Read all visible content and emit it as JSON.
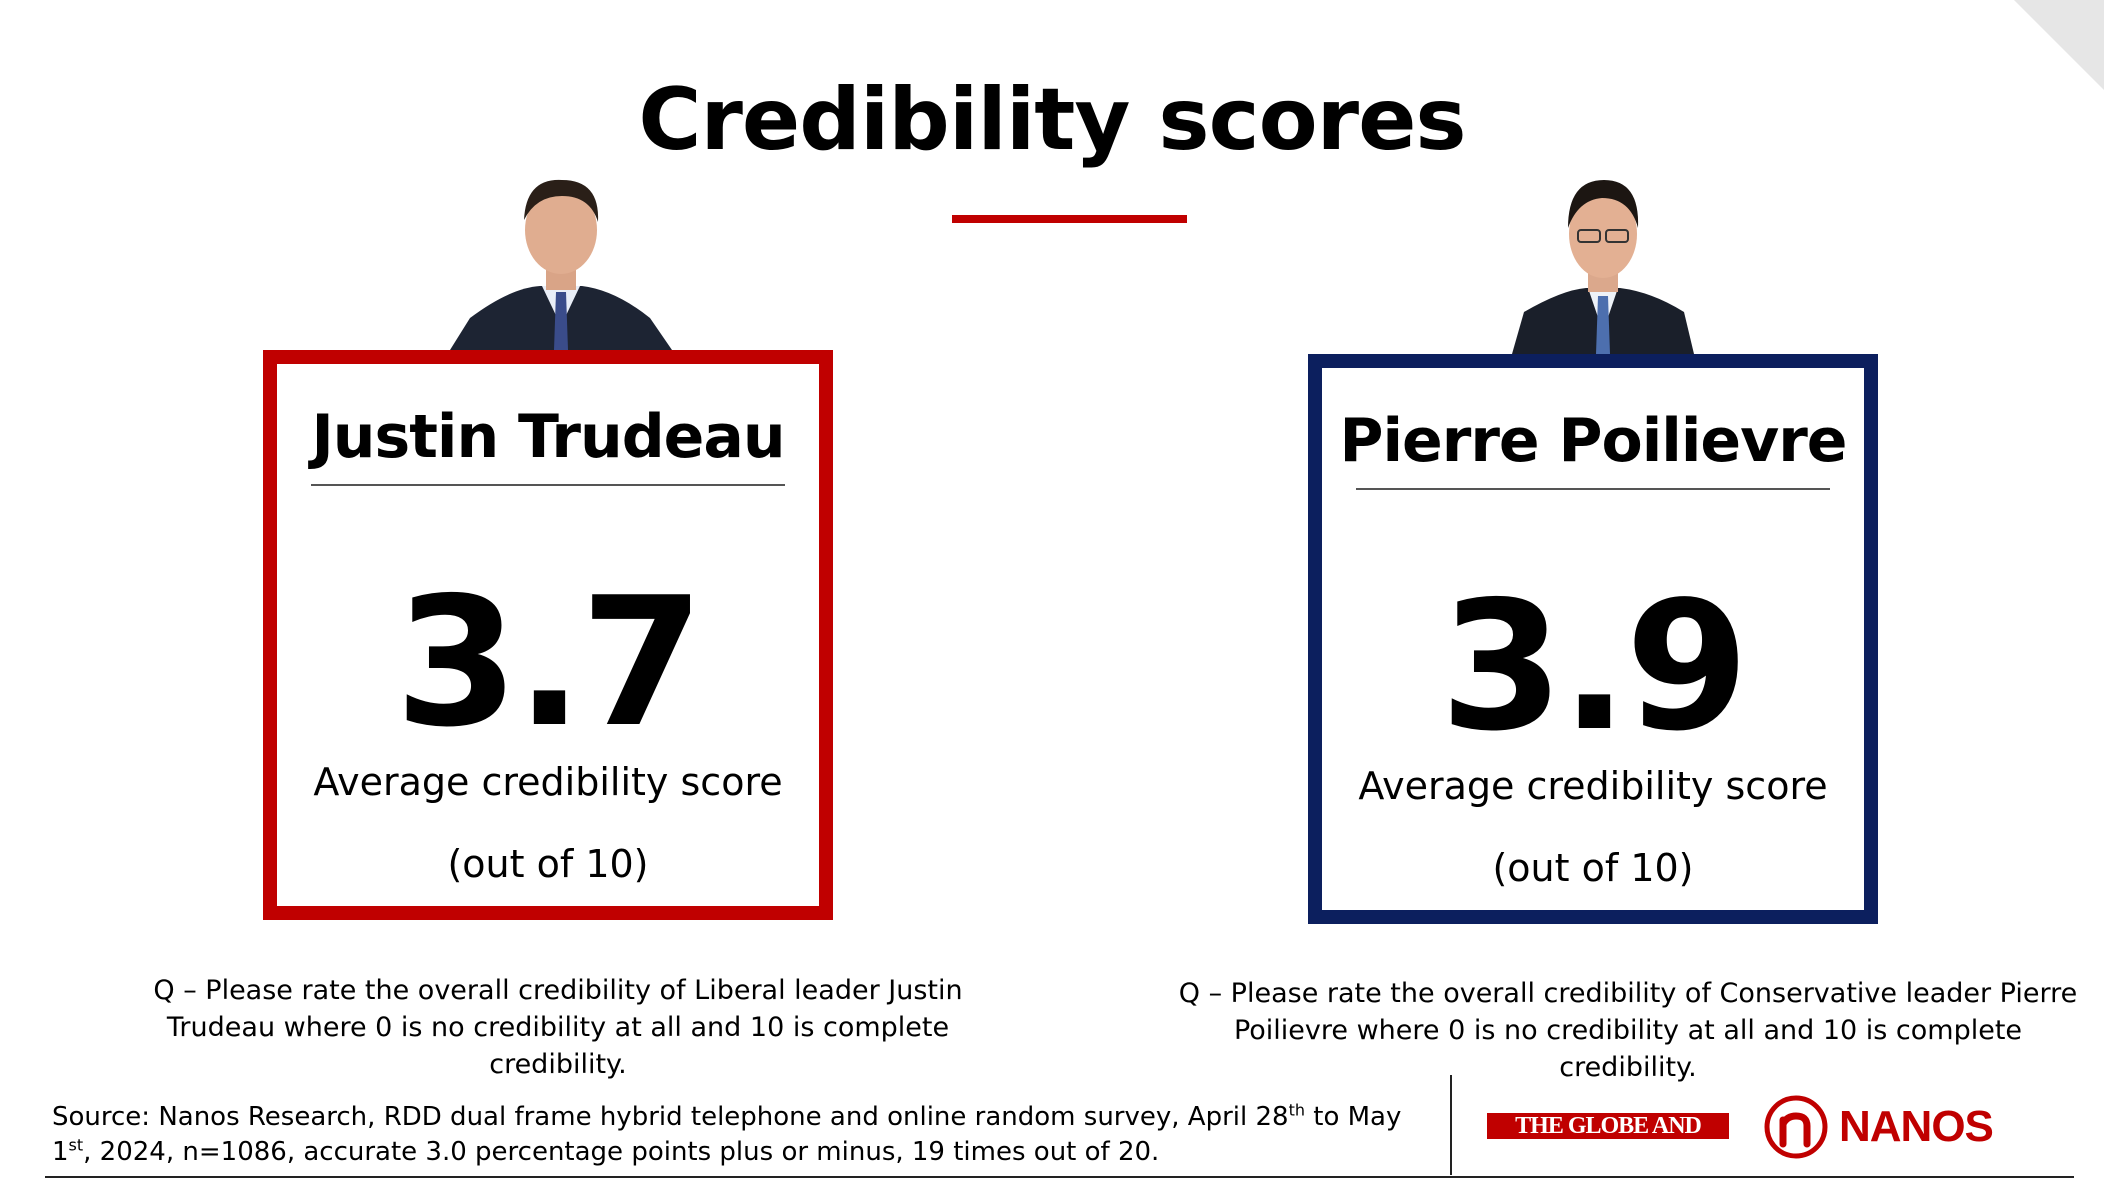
{
  "title": "Credibility scores",
  "accent_color": "#c00000",
  "left_card": {
    "name": "Justin Trudeau",
    "score": "3.7",
    "caption": "Average credibility score",
    "scale": "(out of 10)",
    "border_color": "#c00000",
    "question": "Q – Please rate the overall credibility of Liberal leader Justin Trudeau where 0 is no credibility at all and 10 is complete credibility."
  },
  "right_card": {
    "name": "Pierre Poilievre",
    "score": "3.9",
    "caption": "Average credibility score",
    "scale": "(out of 10)",
    "border_color": "#0c1f5e",
    "question": "Q – Please rate the overall credibility of Conservative leader Pierre Poilievre where 0 is no credibility at all and 10 is complete credibility."
  },
  "footer": {
    "source_part1": "Source: Nanos Research, RDD dual frame hybrid telephone and online random survey, April 28",
    "source_sup1": "th",
    "source_part2": " to May 1",
    "source_sup2": "st",
    "source_part3": ", 2024, n=1086, accurate 3.0 percentage points plus or minus, 19 times out of 20.",
    "globe_logo": "THE GLOBE AND MAIL*",
    "nanos_logo": "NANOS"
  }
}
